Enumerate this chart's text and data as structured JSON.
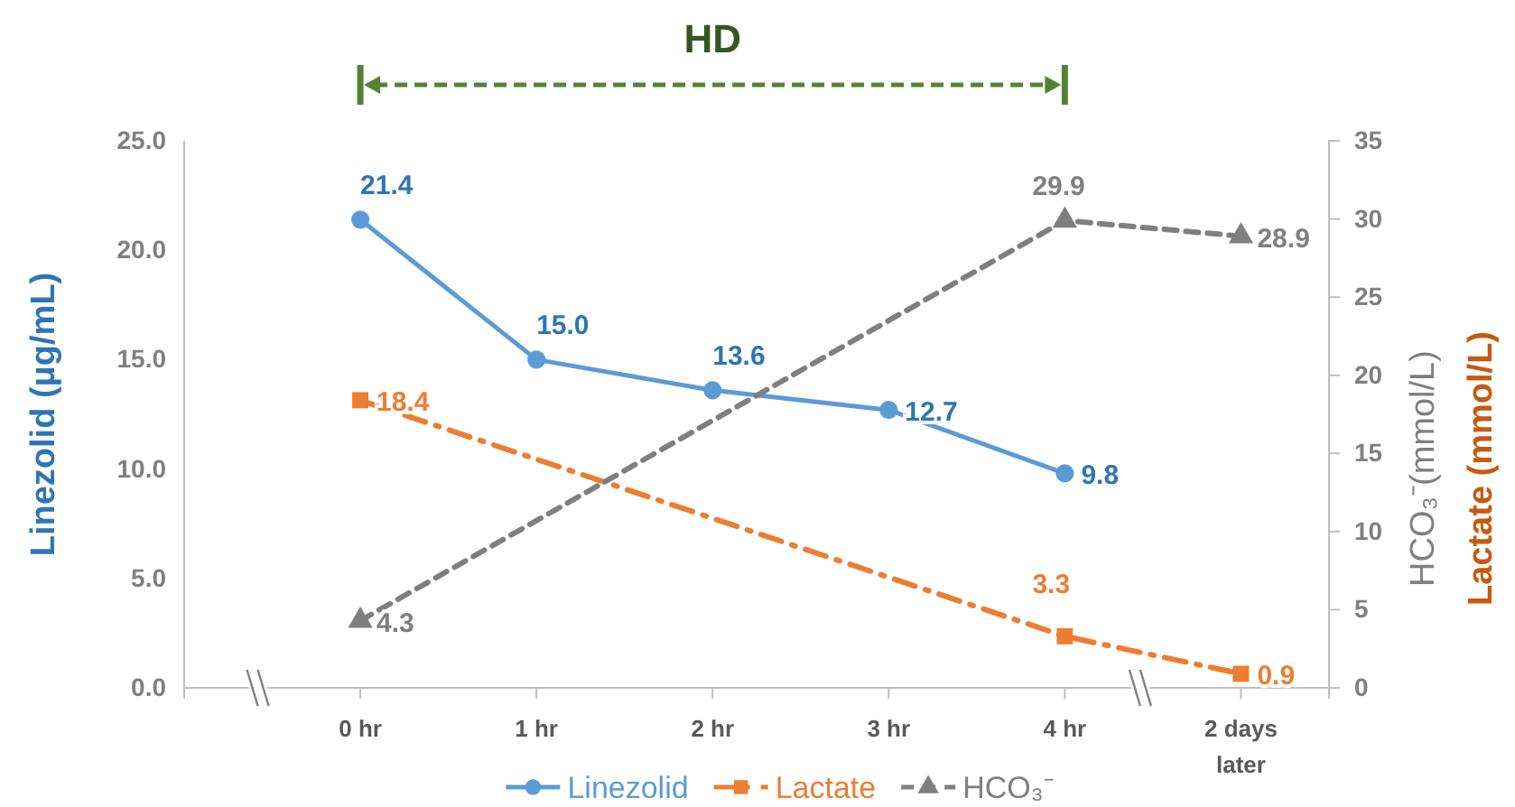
{
  "chart_data": {
    "type": "line",
    "categories": [
      null,
      "0 hr",
      "1 hr",
      "2 hr",
      "3 hr",
      "4 hr",
      "2 days later"
    ],
    "series": [
      {
        "name": "Linezolid",
        "color": "#5b9bd5",
        "values": [
          null,
          21.4,
          15.0,
          13.6,
          12.7,
          9.8,
          null
        ],
        "value_labels": [
          null,
          "21.4",
          "15.0",
          "13.6",
          "12.7",
          "9.8",
          null
        ],
        "marker": "circle",
        "line_style": "solid"
      },
      {
        "name": "Lactate",
        "color": "#ed7d31",
        "values": [
          null,
          18.4,
          null,
          null,
          null,
          3.3,
          0.9
        ],
        "value_labels": [
          null,
          "18.4",
          null,
          null,
          null,
          "3.3",
          "0.9"
        ],
        "marker": "square",
        "line_style": "dashdot",
        "axis": "y2"
      },
      {
        "name": "HCO₃⁻",
        "color": "#7f7f7f",
        "values": [
          null,
          4.3,
          null,
          null,
          null,
          29.9,
          28.9
        ],
        "value_labels": [
          null,
          "4.3",
          null,
          null,
          null,
          "29.9",
          "28.9"
        ],
        "marker": "triangle",
        "line_style": "dashed",
        "axis": "y2"
      }
    ],
    "ylabel": "Linezolid (μg/mL)",
    "y2label": "HCO₃⁻(mmol/L)",
    "ylim": [
      0,
      25
    ],
    "yticks": [
      {
        "value": 0,
        "label": "0.0"
      },
      {
        "value": 5,
        "label": "5.0"
      },
      {
        "value": 10,
        "label": "10.0"
      },
      {
        "value": 15,
        "label": "15.0"
      },
      {
        "value": 20,
        "label": "20.0"
      },
      {
        "value": 25,
        "label": "25.0"
      }
    ],
    "y2lim": [
      0,
      35
    ],
    "y2ticks": [
      0,
      5,
      10,
      15,
      20,
      25,
      30,
      35
    ],
    "annotations": [
      "HD",
      "Lactate (mmol/L)"
    ],
    "grid": false,
    "legend": "bottom"
  }
}
